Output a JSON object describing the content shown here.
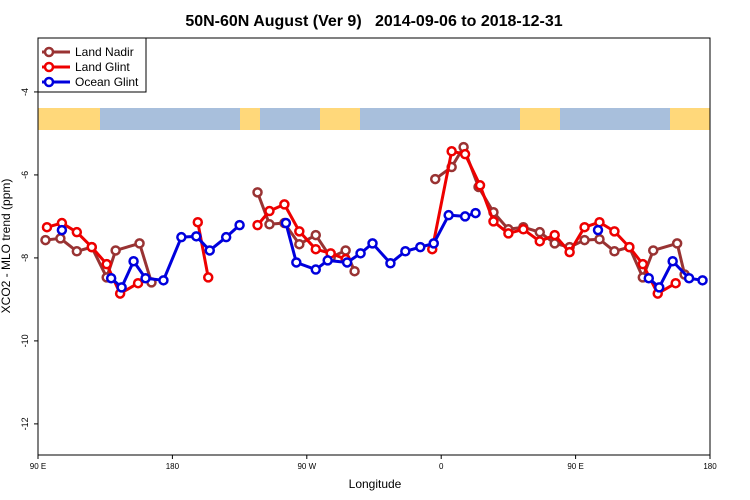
{
  "chart_data": {
    "type": "line",
    "title": "50N-60N August (Ver 9)   2014-09-06 to 2018-12-31",
    "xlabel": "Longitude",
    "ylabel": "XCO2 - MLO trend (ppm)",
    "xlim": [
      90,
      540
    ],
    "ylim": [
      -12.75,
      -2.7
    ],
    "xticks": [
      {
        "value": 90,
        "label": "90 E"
      },
      180,
      {
        "value": 270,
        "label": "90 W"
      },
      {
        "value": 360,
        "label": "0"
      },
      {
        "value": 450,
        "label": "90 E"
      },
      {
        "value": 540,
        "label": "180"
      }
    ],
    "yticks": [
      -12,
      -10,
      -8,
      -6,
      -4
    ],
    "legend": "upper left",
    "series": [
      {
        "name": "Land Nadir",
        "color": "#993333",
        "x": [
          95,
          105,
          116,
          126,
          136,
          142,
          158,
          166,
          null,
          237,
          245,
          255,
          265,
          276,
          286,
          296,
          302,
          null,
          356,
          367,
          375,
          385,
          395,
          405,
          415,
          426,
          436,
          446,
          456,
          466,
          476,
          486,
          495,
          502,
          518,
          523
        ],
        "values": [
          -7.57,
          -7.53,
          -7.84,
          -7.74,
          -8.47,
          -7.82,
          -7.65,
          -8.59,
          null,
          -6.42,
          -7.19,
          -7.16,
          -7.67,
          -7.45,
          -7.99,
          -7.82,
          -8.32,
          null,
          -6.1,
          -5.81,
          -5.33,
          -6.29,
          -6.9,
          -7.31,
          -7.26,
          -7.38,
          -7.65,
          -7.74,
          -7.57,
          -7.55,
          -7.84,
          -7.74,
          -8.47,
          -7.82,
          -7.65,
          -8.4
        ]
      },
      {
        "name": "Land Glint",
        "color": "#ee0000",
        "x": [
          96,
          106,
          116,
          126,
          136,
          145,
          157,
          null,
          197,
          204,
          null,
          237,
          245,
          255,
          265,
          276,
          286,
          296,
          null,
          354,
          367,
          376,
          386,
          395,
          405,
          415,
          426,
          436,
          446,
          456,
          466,
          476,
          486,
          495,
          505,
          517
        ],
        "values": [
          -7.26,
          -7.16,
          -7.38,
          -7.74,
          -8.15,
          -8.86,
          -8.61,
          null,
          -7.14,
          -8.47,
          null,
          -7.21,
          -6.87,
          -6.71,
          -7.36,
          -7.79,
          -7.89,
          -8.03,
          null,
          -7.79,
          -5.43,
          -5.5,
          -6.25,
          -7.12,
          -7.41,
          -7.31,
          -7.6,
          -7.45,
          -7.86,
          -7.26,
          -7.14,
          -7.36,
          -7.74,
          -8.15,
          -8.86,
          -8.61
        ]
      },
      {
        "name": "Ocean Glint",
        "color": "#0000dd",
        "x": [
          106,
          null,
          139,
          146,
          154,
          162,
          174,
          186,
          196,
          205,
          216,
          225,
          null,
          256,
          263,
          276,
          284,
          297,
          306,
          314,
          326,
          336,
          346,
          355,
          365,
          376,
          383,
          null,
          465,
          null,
          499,
          506,
          515,
          526,
          535
        ],
        "values": [
          -7.33,
          null,
          -8.49,
          -8.71,
          -8.08,
          -8.49,
          -8.54,
          -7.5,
          -7.48,
          -7.82,
          -7.5,
          -7.21,
          null,
          -7.16,
          -8.11,
          -8.28,
          -8.06,
          -8.11,
          -7.89,
          -7.65,
          -8.13,
          -7.84,
          -7.74,
          -7.65,
          -6.97,
          -7.0,
          -6.92,
          null,
          -7.33,
          null,
          -8.49,
          -8.71,
          -8.08,
          -8.49,
          -8.54
        ]
      }
    ]
  }
}
